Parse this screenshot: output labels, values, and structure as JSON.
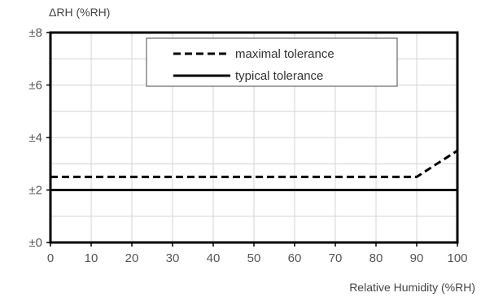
{
  "chart_data": {
    "type": "line",
    "title": "",
    "xlabel": "Relative Humidity (%RH)",
    "ylabel": "ΔRH (%RH)",
    "xlim": [
      0,
      100
    ],
    "ylim": [
      0,
      8
    ],
    "x_ticks": [
      0,
      10,
      20,
      30,
      40,
      50,
      60,
      70,
      80,
      90,
      100
    ],
    "x_tick_labels": [
      "0",
      "10",
      "20",
      "30",
      "40",
      "50",
      "60",
      "70",
      "80",
      "90",
      "100"
    ],
    "y_ticks": [
      0,
      2,
      4,
      6,
      8
    ],
    "y_tick_labels": [
      "±0",
      "±2",
      "±4",
      "±6",
      "±8"
    ],
    "grid": true,
    "legend_position": "top-center",
    "series": [
      {
        "name": "maximal tolerance",
        "style": "dashed",
        "color": "#000000",
        "x": [
          0,
          90,
          100
        ],
        "y": [
          2.5,
          2.5,
          3.5
        ]
      },
      {
        "name": "typical tolerance",
        "style": "solid",
        "color": "#000000",
        "x": [
          0,
          100
        ],
        "y": [
          2,
          2
        ]
      }
    ]
  }
}
